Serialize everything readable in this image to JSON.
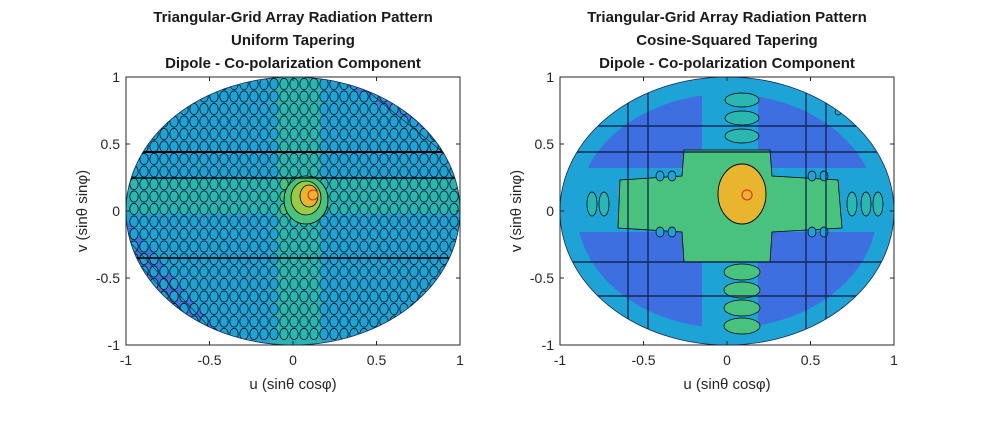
{
  "chart_data": [
    {
      "type": "heatmap",
      "subtype": "filled-contour",
      "title_lines": [
        "Triangular-Grid Array Radiation Pattern",
        "Uniform Tapering",
        "Dipole - Co-polarization Component"
      ],
      "xlabel": "u (sinθ cosφ)",
      "ylabel": "v (sinθ sinφ)",
      "xlim": [
        -1,
        1
      ],
      "ylim": [
        -1,
        1
      ],
      "xticks": [
        "-1",
        "-0.5",
        "0",
        "0.5",
        "1"
      ],
      "yticks": [
        "1",
        "0.5",
        "0",
        "-0.5",
        "-1"
      ],
      "domain": "unit circle u²+v²≤1",
      "main_beam": {
        "u": 0.12,
        "v": 0.12
      },
      "colormap": [
        "#3e6fe0",
        "#1ea3d6",
        "#2ab7b0",
        "#49c27e",
        "#9bcb43",
        "#e9b52c"
      ],
      "beam_marker_color": "#e8302a",
      "contour_color": "#000000",
      "grating_lobes": true,
      "sidelobe_level": "high"
    },
    {
      "type": "heatmap",
      "subtype": "filled-contour",
      "title_lines": [
        "Triangular-Grid Array Radiation Pattern",
        "Cosine-Squared Tapering",
        "Dipole - Co-polarization Component"
      ],
      "xlabel": "u (sinθ cosφ)",
      "ylabel": "v (sinθ sinφ)",
      "xlim": [
        -1,
        1
      ],
      "ylim": [
        -1,
        1
      ],
      "xticks": [
        "-1",
        "-0.5",
        "0",
        "0.5",
        "1"
      ],
      "yticks": [
        "1",
        "0.5",
        "0",
        "-0.5",
        "-1"
      ],
      "domain": "unit circle u²+v²≤1",
      "main_beam": {
        "u": 0.12,
        "v": 0.12
      },
      "colormap": [
        "#3e6fe0",
        "#1ea3d6",
        "#2ab7b0",
        "#49c27e",
        "#9bcb43",
        "#e9b52c"
      ],
      "beam_marker_color": "#e8302a",
      "contour_color": "#000000",
      "grating_lobes": false,
      "sidelobe_level": "low"
    }
  ]
}
